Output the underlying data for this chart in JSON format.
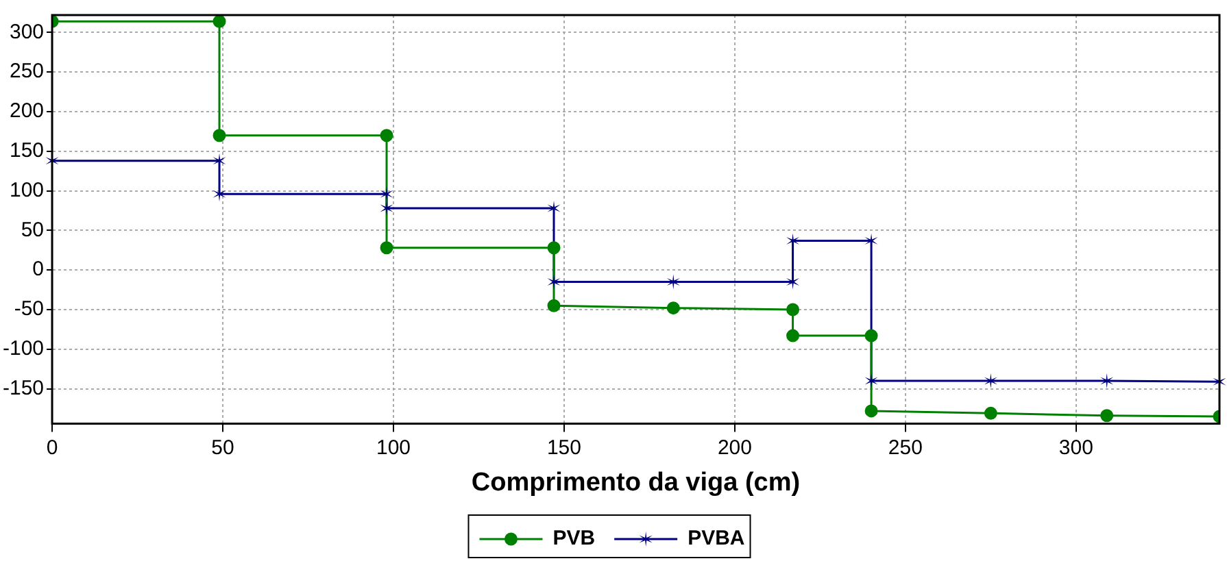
{
  "chart_data": {
    "type": "line",
    "xlabel": "Comprimento da viga (cm)",
    "xlim": [
      0,
      342
    ],
    "xticks": [
      0,
      50,
      100,
      150,
      200,
      250,
      300
    ],
    "ylim": [
      -194,
      322
    ],
    "yticks": [
      -150,
      -100,
      -50,
      0,
      50,
      100,
      150,
      200,
      250,
      300
    ],
    "grid": true,
    "legend": "bottom",
    "line_style": "solid",
    "series": [
      {
        "name": "PVB",
        "color": "#008000",
        "marker": "circle",
        "x": [
          0,
          49,
          49,
          98,
          98,
          147,
          147,
          182,
          217,
          217,
          240,
          240,
          275,
          309,
          342
        ],
        "values": [
          314,
          314,
          170,
          170,
          28,
          28,
          -45,
          -48,
          -50,
          -83,
          -83,
          -178,
          -181,
          -184,
          -185
        ]
      },
      {
        "name": "PVBA",
        "color": "#000080",
        "marker": "cross",
        "x": [
          0,
          49,
          49,
          98,
          98,
          147,
          147,
          182,
          217,
          217,
          240,
          240,
          275,
          309,
          342
        ],
        "values": [
          138,
          138,
          96,
          96,
          78,
          78,
          -15,
          -15,
          -15,
          37,
          37,
          -140,
          -140,
          -140,
          -141
        ]
      }
    ]
  }
}
